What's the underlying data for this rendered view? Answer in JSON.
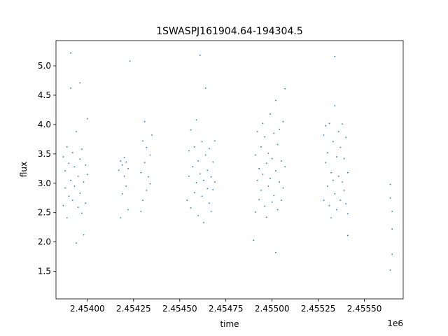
{
  "chart_data": {
    "type": "scatter",
    "title": "1SWASPJ161904.64-194304.5",
    "xlabel": "time",
    "ylabel": "flux",
    "x_offset_label": "1e6",
    "xlim": [
      2.45383,
      2.45571
    ],
    "ylim": [
      1.03,
      5.43
    ],
    "x_ticks": [
      2.454,
      2.45425,
      2.4545,
      2.45475,
      2.455,
      2.45525,
      2.4555
    ],
    "x_tick_labels": [
      "2.45400",
      "2.45425",
      "2.45450",
      "2.45475",
      "2.45500",
      "2.45525",
      "2.45550"
    ],
    "y_ticks": [
      1.5,
      2.0,
      2.5,
      3.0,
      3.5,
      4.0,
      4.5,
      5.0
    ],
    "y_tick_labels": [
      "1.5",
      "2.0",
      "2.5",
      "3.0",
      "3.5",
      "4.0",
      "4.5",
      "5.0"
    ],
    "grid": false,
    "marker_color": "#1f77b4",
    "series": [
      {
        "points": [
          [
            2.45387,
            2.62
          ],
          [
            2.45387,
            3.45
          ],
          [
            2.45388,
            2.92
          ],
          [
            2.45388,
            3.21
          ],
          [
            2.45389,
            2.41
          ],
          [
            2.45389,
            3.62
          ],
          [
            2.4539,
            2.78
          ],
          [
            2.4539,
            3.34
          ],
          [
            2.45391,
            3.05
          ],
          [
            2.45391,
            5.22
          ],
          [
            2.45391,
            4.62
          ],
          [
            2.45392,
            2.71
          ],
          [
            2.45392,
            3.52
          ],
          [
            2.45393,
            2.95
          ],
          [
            2.45393,
            3.28
          ],
          [
            2.45394,
            1.98
          ],
          [
            2.45394,
            3.88
          ],
          [
            2.45395,
            2.59
          ],
          [
            2.45395,
            3.12
          ],
          [
            2.45396,
            3.41
          ],
          [
            2.45396,
            2.83
          ],
          [
            2.45396,
            4.71
          ],
          [
            2.45397,
            2.49
          ],
          [
            2.45397,
            3.58
          ],
          [
            2.45398,
            3.02
          ],
          [
            2.45398,
            2.12
          ],
          [
            2.45399,
            3.31
          ],
          [
            2.45399,
            2.66
          ],
          [
            2.454,
            3.15
          ],
          [
            2.454,
            4.1
          ],
          [
            2.45417,
            3.22
          ],
          [
            2.45418,
            3.38
          ],
          [
            2.45418,
            2.41
          ],
          [
            2.45419,
            3.31
          ],
          [
            2.45419,
            2.82
          ],
          [
            2.4542,
            3.44
          ],
          [
            2.4542,
            3.12
          ],
          [
            2.45421,
            2.95
          ],
          [
            2.45421,
            3.36
          ],
          [
            2.45422,
            2.55
          ],
          [
            2.45422,
            3.25
          ],
          [
            2.45423,
            5.08
          ],
          [
            2.45429,
            2.52
          ],
          [
            2.45429,
            3.18
          ],
          [
            2.4543,
            3.72
          ],
          [
            2.4543,
            2.71
          ],
          [
            2.45431,
            4.05
          ],
          [
            2.45431,
            3.35
          ],
          [
            2.45432,
            2.88
          ],
          [
            2.45432,
            3.61
          ],
          [
            2.45433,
            3.11
          ],
          [
            2.45434,
            3.48
          ],
          [
            2.45434,
            2.99
          ],
          [
            2.45435,
            3.82
          ],
          [
            2.45454,
            2.71
          ],
          [
            2.45455,
            3.12
          ],
          [
            2.45455,
            3.55
          ],
          [
            2.45456,
            2.58
          ],
          [
            2.45456,
            3.91
          ],
          [
            2.45457,
            3.28
          ],
          [
            2.45458,
            2.84
          ],
          [
            2.45458,
            3.62
          ],
          [
            2.45459,
            3.01
          ],
          [
            2.45459,
            4.08
          ],
          [
            2.4546,
            2.45
          ],
          [
            2.4546,
            3.38
          ],
          [
            2.45461,
            3.16
          ],
          [
            2.45461,
            5.18
          ],
          [
            2.45462,
            2.78
          ],
          [
            2.45462,
            3.71
          ],
          [
            2.45463,
            3.05
          ],
          [
            2.45463,
            2.33
          ],
          [
            2.45464,
            3.48
          ],
          [
            2.45464,
            4.62
          ],
          [
            2.45465,
            2.91
          ],
          [
            2.45465,
            3.22
          ],
          [
            2.45466,
            2.66
          ],
          [
            2.45466,
            3.59
          ],
          [
            2.45467,
            3.11
          ],
          [
            2.45467,
            2.52
          ],
          [
            2.45468,
            3.36
          ],
          [
            2.45468,
            2.89
          ],
          [
            2.45469,
            3.72
          ],
          [
            2.45469,
            3.02
          ],
          [
            2.45491,
            2.51
          ],
          [
            2.45491,
            3.48
          ],
          [
            2.45492,
            3.05
          ],
          [
            2.45492,
            3.88
          ],
          [
            2.45493,
            2.72
          ],
          [
            2.45493,
            3.25
          ],
          [
            2.45494,
            3.62
          ],
          [
            2.45494,
            2.88
          ],
          [
            2.45495,
            4.02
          ],
          [
            2.45495,
            3.15
          ],
          [
            2.45496,
            2.61
          ],
          [
            2.45496,
            3.79
          ],
          [
            2.45497,
            3.34
          ],
          [
            2.45497,
            2.42
          ],
          [
            2.45498,
            3.51
          ],
          [
            2.45498,
            2.95
          ],
          [
            2.45499,
            4.18
          ],
          [
            2.45499,
            3.08
          ],
          [
            2.455,
            2.68
          ],
          [
            2.455,
            3.42
          ],
          [
            2.45501,
            3.85
          ],
          [
            2.45501,
            2.79
          ],
          [
            2.45502,
            3.21
          ],
          [
            2.45502,
            4.41
          ],
          [
            2.45503,
            2.55
          ],
          [
            2.45503,
            3.66
          ],
          [
            2.45504,
            3.02
          ],
          [
            2.45504,
            3.92
          ],
          [
            2.45505,
            2.71
          ],
          [
            2.45505,
            3.38
          ],
          [
            2.45506,
            4.05
          ],
          [
            2.45506,
            2.92
          ],
          [
            2.45507,
            3.28
          ],
          [
            2.45507,
            4.61
          ],
          [
            2.4549,
            2.03
          ],
          [
            2.45502,
            1.82
          ],
          [
            2.45528,
            3.82
          ],
          [
            2.45528,
            2.71
          ],
          [
            2.45529,
            3.35
          ],
          [
            2.45529,
            3.98
          ],
          [
            2.4553,
            2.95
          ],
          [
            2.4553,
            3.52
          ],
          [
            2.45531,
            2.62
          ],
          [
            2.45531,
            4.02
          ],
          [
            2.45532,
            3.18
          ],
          [
            2.45532,
            2.41
          ],
          [
            2.45533,
            3.71
          ],
          [
            2.45533,
            3.05
          ],
          [
            2.45534,
            4.32
          ],
          [
            2.45534,
            2.82
          ],
          [
            2.45535,
            3.45
          ],
          [
            2.45535,
            2.55
          ],
          [
            2.45536,
            3.88
          ],
          [
            2.45536,
            3.12
          ],
          [
            2.45537,
            2.71
          ],
          [
            2.45537,
            3.61
          ],
          [
            2.45538,
            3.02
          ],
          [
            2.45538,
            4.01
          ],
          [
            2.45539,
            2.88
          ],
          [
            2.45539,
            3.42
          ],
          [
            2.4554,
            2.65
          ],
          [
            2.4554,
            3.78
          ],
          [
            2.45541,
            3.18
          ],
          [
            2.45541,
            2.48
          ],
          [
            2.45534,
            5.16
          ],
          [
            2.45541,
            2.11
          ],
          [
            2.45564,
            2.98
          ],
          [
            2.45564,
            2.75
          ],
          [
            2.45565,
            2.22
          ],
          [
            2.45565,
            2.52
          ],
          [
            2.45565,
            1.79
          ],
          [
            2.45564,
            1.52
          ]
        ]
      }
    ]
  }
}
